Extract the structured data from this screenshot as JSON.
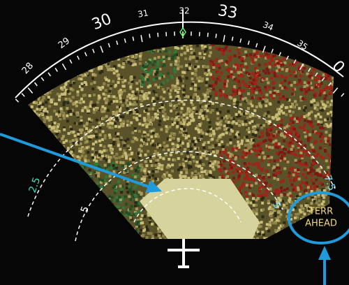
{
  "compass": {
    "labels": [
      "28",
      "29",
      "30",
      "31",
      "32",
      "33",
      "34",
      "35",
      "0"
    ]
  },
  "range_labels": [
    "2.5",
    "5",
    "5",
    "7.5"
  ],
  "alert": {
    "lines": [
      "TERR",
      "AHEAD"
    ]
  }
}
